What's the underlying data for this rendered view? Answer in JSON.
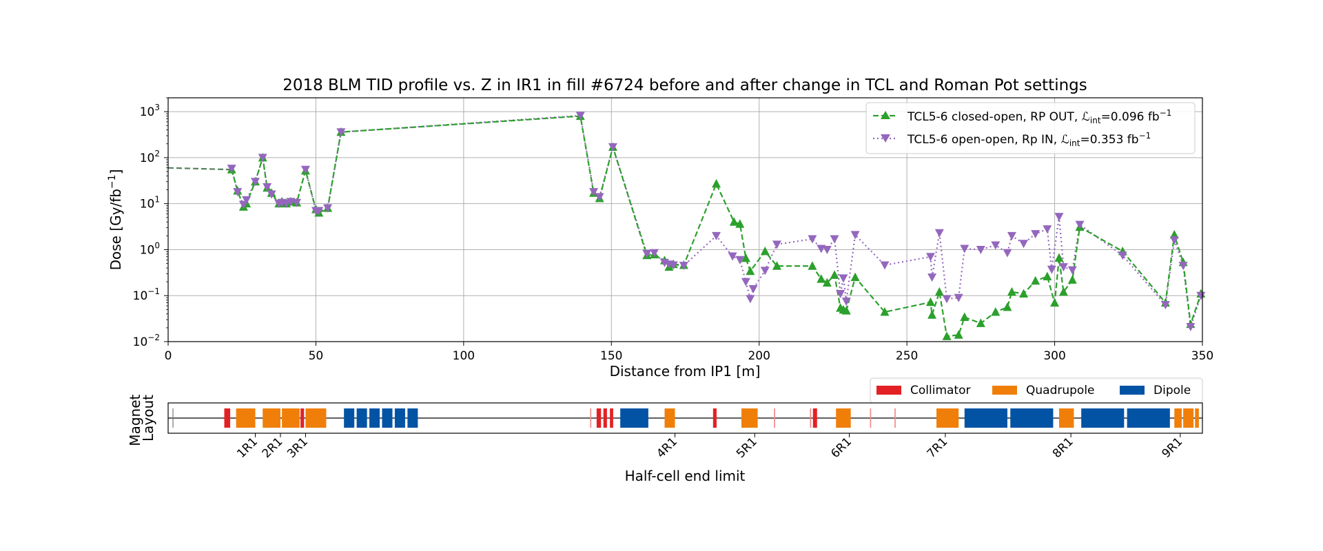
{
  "chart_data": [
    {
      "type": "line",
      "title": "2018 BLM TID profile vs. Z in IR1 in fill #6724 before and after change in TCL and Roman Pot settings",
      "xlabel": "Distance from IP1 [m]",
      "ylabel": "Dose [Gy/fb",
      "ylabel_sup": "−1",
      "ylabel_end": "]",
      "xlim": [
        0,
        350
      ],
      "ylim": [
        0.01,
        2000
      ],
      "yscale": "log",
      "grid": true,
      "legend_position": "top-right",
      "x_ticks": [
        "0",
        "50",
        "100",
        "150",
        "200",
        "250",
        "300",
        "350"
      ],
      "y_ticks": [
        {
          "base": "10",
          "exp": "−2"
        },
        {
          "base": "10",
          "exp": "−1"
        },
        {
          "base": "10",
          "exp": "0"
        },
        {
          "base": "10",
          "exp": "1"
        },
        {
          "base": "10",
          "exp": "2"
        },
        {
          "base": "10",
          "exp": "3"
        }
      ],
      "series": [
        {
          "legend_text": "TCL5-6 closed-open, RP OUT, ",
          "legend_lumi_sub": "int",
          "legend_lumi_val": "=0.096 fb",
          "legend_lumi_sup": "−1",
          "color": "#2ca02c",
          "marker": "triangle-up",
          "linestyle": "dashed",
          "x": [
            21.5,
            23.5,
            25.5,
            26.5,
            29.5,
            32.0,
            33.5,
            35.0,
            37.5,
            38.5,
            40.0,
            41.5,
            43.5,
            46.5,
            50.0,
            51.0,
            54.0,
            58.5,
            139.5,
            144.0,
            146.0,
            150.5,
            162.0,
            164.5,
            168.0,
            169.5,
            171.0,
            174.5,
            185.5,
            191.5,
            193.5,
            195.5,
            197.0,
            202.0,
            206.0,
            218.0,
            221.0,
            223.0,
            225.5,
            227.5,
            228.5,
            229.5,
            232.5,
            242.5,
            258.0,
            258.5,
            261.0,
            263.5,
            267.5,
            269.5,
            275.0,
            280.0,
            284.0,
            285.5,
            289.5,
            293.5,
            297.5,
            300.0,
            301.5,
            303.0,
            306.0,
            308.5,
            323.0,
            337.5,
            340.5,
            343.5,
            346.0,
            349.5
          ],
          "y": [
            55,
            19,
            8.5,
            10,
            30,
            100,
            22,
            17,
            10,
            11,
            10,
            11,
            10.5,
            52,
            7.5,
            6.3,
            8,
            360,
            800,
            17,
            13,
            170,
            0.75,
            0.78,
            0.58,
            0.42,
            0.48,
            0.46,
            27,
            4.0,
            3.6,
            0.65,
            0.34,
            0.92,
            0.44,
            0.44,
            0.23,
            0.19,
            0.28,
            0.054,
            0.049,
            0.047,
            0.25,
            0.044,
            0.072,
            0.038,
            0.12,
            0.013,
            0.014,
            0.034,
            0.025,
            0.044,
            0.056,
            0.12,
            0.11,
            0.21,
            0.26,
            0.07,
            0.66,
            0.12,
            0.22,
            3.1,
            0.92,
            0.07,
            2.1,
            0.53,
            0.024,
            0.11
          ]
        },
        {
          "legend_text": "TCL5-6 open-open, Rp IN, ",
          "legend_lumi_sub": "int",
          "legend_lumi_val": "=0.353 fb",
          "legend_lumi_sup": "−1",
          "color": "#9467bd",
          "marker": "triangle-down",
          "linestyle": "dotted",
          "x": [
            21.5,
            23.5,
            25.5,
            26.5,
            29.5,
            32.0,
            33.5,
            35.0,
            37.5,
            38.5,
            40.0,
            41.5,
            43.5,
            46.5,
            50.0,
            51.0,
            54.0,
            58.5,
            139.5,
            144.0,
            146.0,
            150.5,
            162.0,
            164.5,
            168.0,
            169.5,
            171.0,
            174.5,
            185.5,
            191.0,
            193.5,
            195.5,
            197.0,
            198.0,
            202.0,
            206.0,
            218.0,
            221.0,
            223.0,
            225.5,
            227.5,
            228.5,
            229.5,
            232.5,
            242.5,
            258.0,
            258.5,
            261.0,
            263.5,
            267.5,
            269.5,
            275.0,
            280.0,
            284.0,
            285.5,
            289.5,
            293.5,
            297.5,
            299.0,
            301.5,
            303.0,
            306.0,
            308.5,
            323.0,
            337.5,
            340.5,
            343.5,
            346.0,
            349.5
          ],
          "y": [
            58,
            18,
            9.5,
            12,
            30,
            100,
            23,
            16,
            10,
            10.5,
            10,
            11,
            10.5,
            55,
            7,
            7,
            8,
            360,
            820,
            18,
            14,
            170,
            0.82,
            0.85,
            0.52,
            0.48,
            0.46,
            0.45,
            2.0,
            0.72,
            0.6,
            0.2,
            0.085,
            0.14,
            0.35,
            1.3,
            1.7,
            1.05,
            1.0,
            1.7,
            0.11,
            0.24,
            0.075,
            2.1,
            0.46,
            0.7,
            0.25,
            2.3,
            0.085,
            0.09,
            1.05,
            1.0,
            1.25,
            0.85,
            2.0,
            1.35,
            2.2,
            2.8,
            0.37,
            5.2,
            0.42,
            0.36,
            3.5,
            0.75,
            0.063,
            1.6,
            0.45,
            0.021,
            0.1
          ]
        }
      ],
      "lead_line": {
        "x": [
          0,
          21.5
        ],
        "y": [
          60,
          55
        ]
      }
    },
    {
      "type": "layout",
      "ylabel_line1": "Magnet",
      "ylabel_line2": "Layout",
      "xlabel": "Half-cell end limit",
      "legend_position": "top-right",
      "legend": [
        {
          "label": "Collimator",
          "color": "#e32124"
        },
        {
          "label": "Quadrupole",
          "color": "#f07f0a"
        },
        {
          "label": "Dipole",
          "color": "#0353a4"
        }
      ],
      "half_cell_ticks": [
        {
          "label": "1R1",
          "x": 29.5
        },
        {
          "label": "2R1",
          "x": 38.0
        },
        {
          "label": "3R1",
          "x": 46.5
        },
        {
          "label": "4R1",
          "x": 171.5
        },
        {
          "label": "5R1",
          "x": 198.5
        },
        {
          "label": "6R1",
          "x": 230.5
        },
        {
          "label": "7R1",
          "x": 263.0
        },
        {
          "label": "8R1",
          "x": 305.5
        },
        {
          "label": "9R1",
          "x": 342.5
        }
      ],
      "elements": [
        {
          "kind": "marker",
          "x0": 1.5,
          "x1": 1.7
        },
        {
          "kind": "collimator",
          "x0": 19.0,
          "x1": 21.0
        },
        {
          "kind": "quadrupole",
          "x0": 23.0,
          "x1": 29.5
        },
        {
          "kind": "quadrupole",
          "x0": 32.0,
          "x1": 38.0
        },
        {
          "kind": "quadrupole",
          "x0": 38.5,
          "x1": 44.5
        },
        {
          "kind": "collimator",
          "x0": 44.8,
          "x1": 46.0
        },
        {
          "kind": "quadrupole",
          "x0": 46.5,
          "x1": 53.5
        },
        {
          "kind": "dipole",
          "x0": 59.5,
          "x1": 63.0
        },
        {
          "kind": "dipole",
          "x0": 63.8,
          "x1": 67.3
        },
        {
          "kind": "dipole",
          "x0": 68.1,
          "x1": 71.6
        },
        {
          "kind": "dipole",
          "x0": 72.4,
          "x1": 75.9
        },
        {
          "kind": "dipole",
          "x0": 76.7,
          "x1": 80.2
        },
        {
          "kind": "dipole",
          "x0": 81.0,
          "x1": 84.5
        },
        {
          "kind": "collimator",
          "x0": 142.8,
          "x1": 143.2
        },
        {
          "kind": "collimator",
          "x0": 145.0,
          "x1": 146.5
        },
        {
          "kind": "collimator",
          "x0": 147.3,
          "x1": 148.5
        },
        {
          "kind": "collimator",
          "x0": 149.5,
          "x1": 150.6
        },
        {
          "kind": "dipole",
          "x0": 153.0,
          "x1": 162.5
        },
        {
          "kind": "quadrupole",
          "x0": 168.0,
          "x1": 171.5
        },
        {
          "kind": "collimator",
          "x0": 184.4,
          "x1": 185.6
        },
        {
          "kind": "quadrupole",
          "x0": 194.0,
          "x1": 199.5
        },
        {
          "kind": "collimator",
          "x0": 205.0,
          "x1": 205.4
        },
        {
          "kind": "collimator",
          "x0": 217.2,
          "x1": 217.6
        },
        {
          "kind": "collimator",
          "x0": 218.2,
          "x1": 219.6
        },
        {
          "kind": "quadrupole",
          "x0": 226.0,
          "x1": 231.0
        },
        {
          "kind": "collimator",
          "x0": 237.5,
          "x1": 237.9
        },
        {
          "kind": "collimator",
          "x0": 245.8,
          "x1": 246.2
        },
        {
          "kind": "quadrupole",
          "x0": 260.0,
          "x1": 267.5
        },
        {
          "kind": "dipole",
          "x0": 269.5,
          "x1": 284.0
        },
        {
          "kind": "dipole",
          "x0": 285.0,
          "x1": 299.5
        },
        {
          "kind": "quadrupole",
          "x0": 301.5,
          "x1": 306.5
        },
        {
          "kind": "dipole",
          "x0": 309.0,
          "x1": 323.5
        },
        {
          "kind": "dipole",
          "x0": 324.5,
          "x1": 339.0
        },
        {
          "kind": "quadrupole",
          "x0": 340.5,
          "x1": 343.0
        },
        {
          "kind": "quadrupole",
          "x0": 343.5,
          "x1": 347.0
        },
        {
          "kind": "quadrupole",
          "x0": 347.5,
          "x1": 348.8
        }
      ]
    }
  ]
}
